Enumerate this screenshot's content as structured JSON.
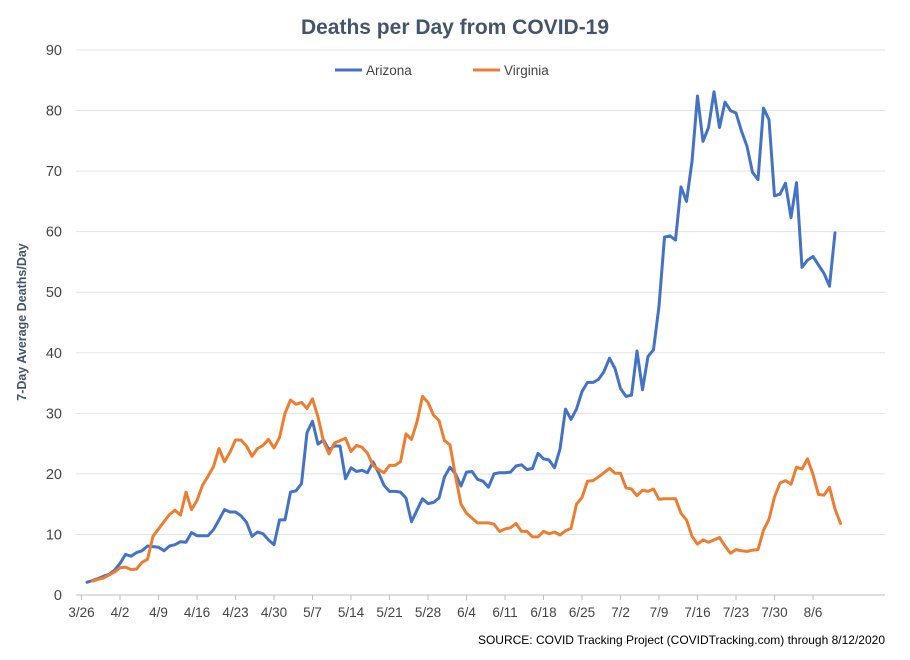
{
  "chart_data": {
    "type": "line",
    "title": "Deaths per Day from COVID-19",
    "ylabel": "7-Day Average Deaths/Day",
    "xlabel": "",
    "source": "SOURCE: COVID Tracking Project (COVIDTracking.com) through 8/12/2020",
    "ylim": [
      0,
      90
    ],
    "yticks": [
      0,
      10,
      20,
      30,
      40,
      50,
      60,
      70,
      80,
      90
    ],
    "x_start": "3/27",
    "x_tick_labels": [
      "3/26",
      "4/2",
      "4/9",
      "4/16",
      "4/23",
      "4/30",
      "5/7",
      "5/14",
      "5/21",
      "5/28",
      "6/4",
      "6/11",
      "6/18",
      "6/25",
      "7/2",
      "7/9",
      "7/16",
      "7/23",
      "7/30",
      "8/6"
    ],
    "grid": true,
    "legend_position": "top-center",
    "series": [
      {
        "name": "Arizona",
        "color": "#4472c4",
        "values": [
          2.1,
          2.4,
          2.7,
          3.1,
          3.4,
          4.1,
          5.2,
          6.7,
          6.4,
          7.0,
          7.3,
          8.1,
          8.0,
          7.9,
          7.3,
          8.1,
          8.3,
          8.8,
          8.7,
          10.3,
          9.8,
          9.8,
          9.8,
          10.8,
          12.4,
          14.1,
          13.7,
          13.7,
          13.1,
          12.0,
          9.7,
          10.4,
          10.1,
          9.1,
          8.3,
          12.4,
          12.4,
          17.0,
          17.2,
          18.4,
          26.8,
          28.7,
          24.9,
          25.6,
          24.0,
          24.6,
          24.6,
          19.2,
          21.0,
          20.4,
          20.6,
          20.2,
          22.0,
          20.2,
          18.1,
          17.1,
          17.1,
          17.0,
          16.0,
          12.1,
          14.0,
          15.9,
          15.1,
          15.3,
          16.0,
          19.5,
          21.1,
          20.0,
          18.0,
          20.3,
          20.4,
          19.1,
          18.8,
          17.8,
          20.0,
          20.2,
          20.2,
          20.3,
          21.3,
          21.5,
          20.7,
          20.9,
          23.4,
          22.5,
          22.3,
          21.0,
          24.1,
          30.7,
          29.0,
          30.7,
          33.6,
          35.1,
          35.1,
          35.6,
          36.9,
          39.1,
          37.4,
          34.1,
          32.8,
          33.0,
          40.3,
          33.9,
          39.4,
          40.5,
          47.7,
          59.1,
          59.3,
          58.6,
          67.4,
          65.0,
          71.6,
          82.4,
          74.9,
          77.2,
          83.1,
          77.2,
          81.4,
          80.0,
          79.6,
          76.6,
          74.1,
          69.8,
          68.6,
          80.4,
          78.5,
          65.9,
          66.2,
          68.0,
          62.3,
          68.1,
          54.1,
          55.3,
          55.9,
          54.5,
          53.1,
          51.0,
          59.8
        ]
      },
      {
        "name": "Virginia",
        "color": "#ed7d31",
        "values": [
          null,
          2.3,
          2.6,
          2.8,
          3.3,
          3.8,
          4.5,
          4.6,
          4.2,
          4.3,
          5.4,
          5.9,
          9.7,
          10.9,
          12.1,
          13.3,
          14.0,
          13.2,
          17.0,
          14.1,
          15.6,
          18.1,
          19.6,
          21.2,
          24.2,
          22.0,
          23.6,
          25.6,
          25.6,
          24.6,
          22.9,
          24.2,
          24.7,
          25.7,
          24.3,
          26.0,
          30.0,
          32.2,
          31.5,
          31.8,
          30.8,
          32.4,
          29.4,
          25.4,
          23.3,
          25.1,
          25.5,
          25.9,
          23.7,
          24.7,
          24.4,
          23.4,
          21.4,
          20.7,
          20.2,
          21.4,
          21.4,
          22.0,
          26.6,
          25.7,
          28.6,
          32.8,
          31.8,
          29.7,
          28.8,
          25.5,
          24.8,
          19.6,
          15.0,
          13.5,
          12.7,
          11.9,
          11.9,
          11.9,
          11.7,
          10.5,
          10.9,
          11.1,
          11.8,
          10.5,
          10.5,
          9.6,
          9.6,
          10.5,
          10.1,
          10.4,
          9.9,
          10.6,
          11.0,
          15.0,
          16.1,
          18.8,
          18.9,
          19.5,
          20.2,
          20.9,
          20.1,
          20.1,
          17.7,
          17.5,
          16.4,
          17.3,
          17.1,
          17.5,
          15.8,
          15.9,
          15.9,
          15.9,
          13.5,
          12.4,
          9.7,
          8.4,
          9.1,
          8.7,
          9.1,
          9.5,
          8.1,
          6.9,
          7.5,
          7.3,
          7.2,
          7.4,
          7.5,
          10.7,
          12.5,
          16.2,
          18.5,
          18.9,
          18.3,
          21.1,
          20.8,
          22.5,
          19.9,
          16.6,
          16.5,
          17.8,
          14.2,
          11.8
        ]
      }
    ]
  }
}
